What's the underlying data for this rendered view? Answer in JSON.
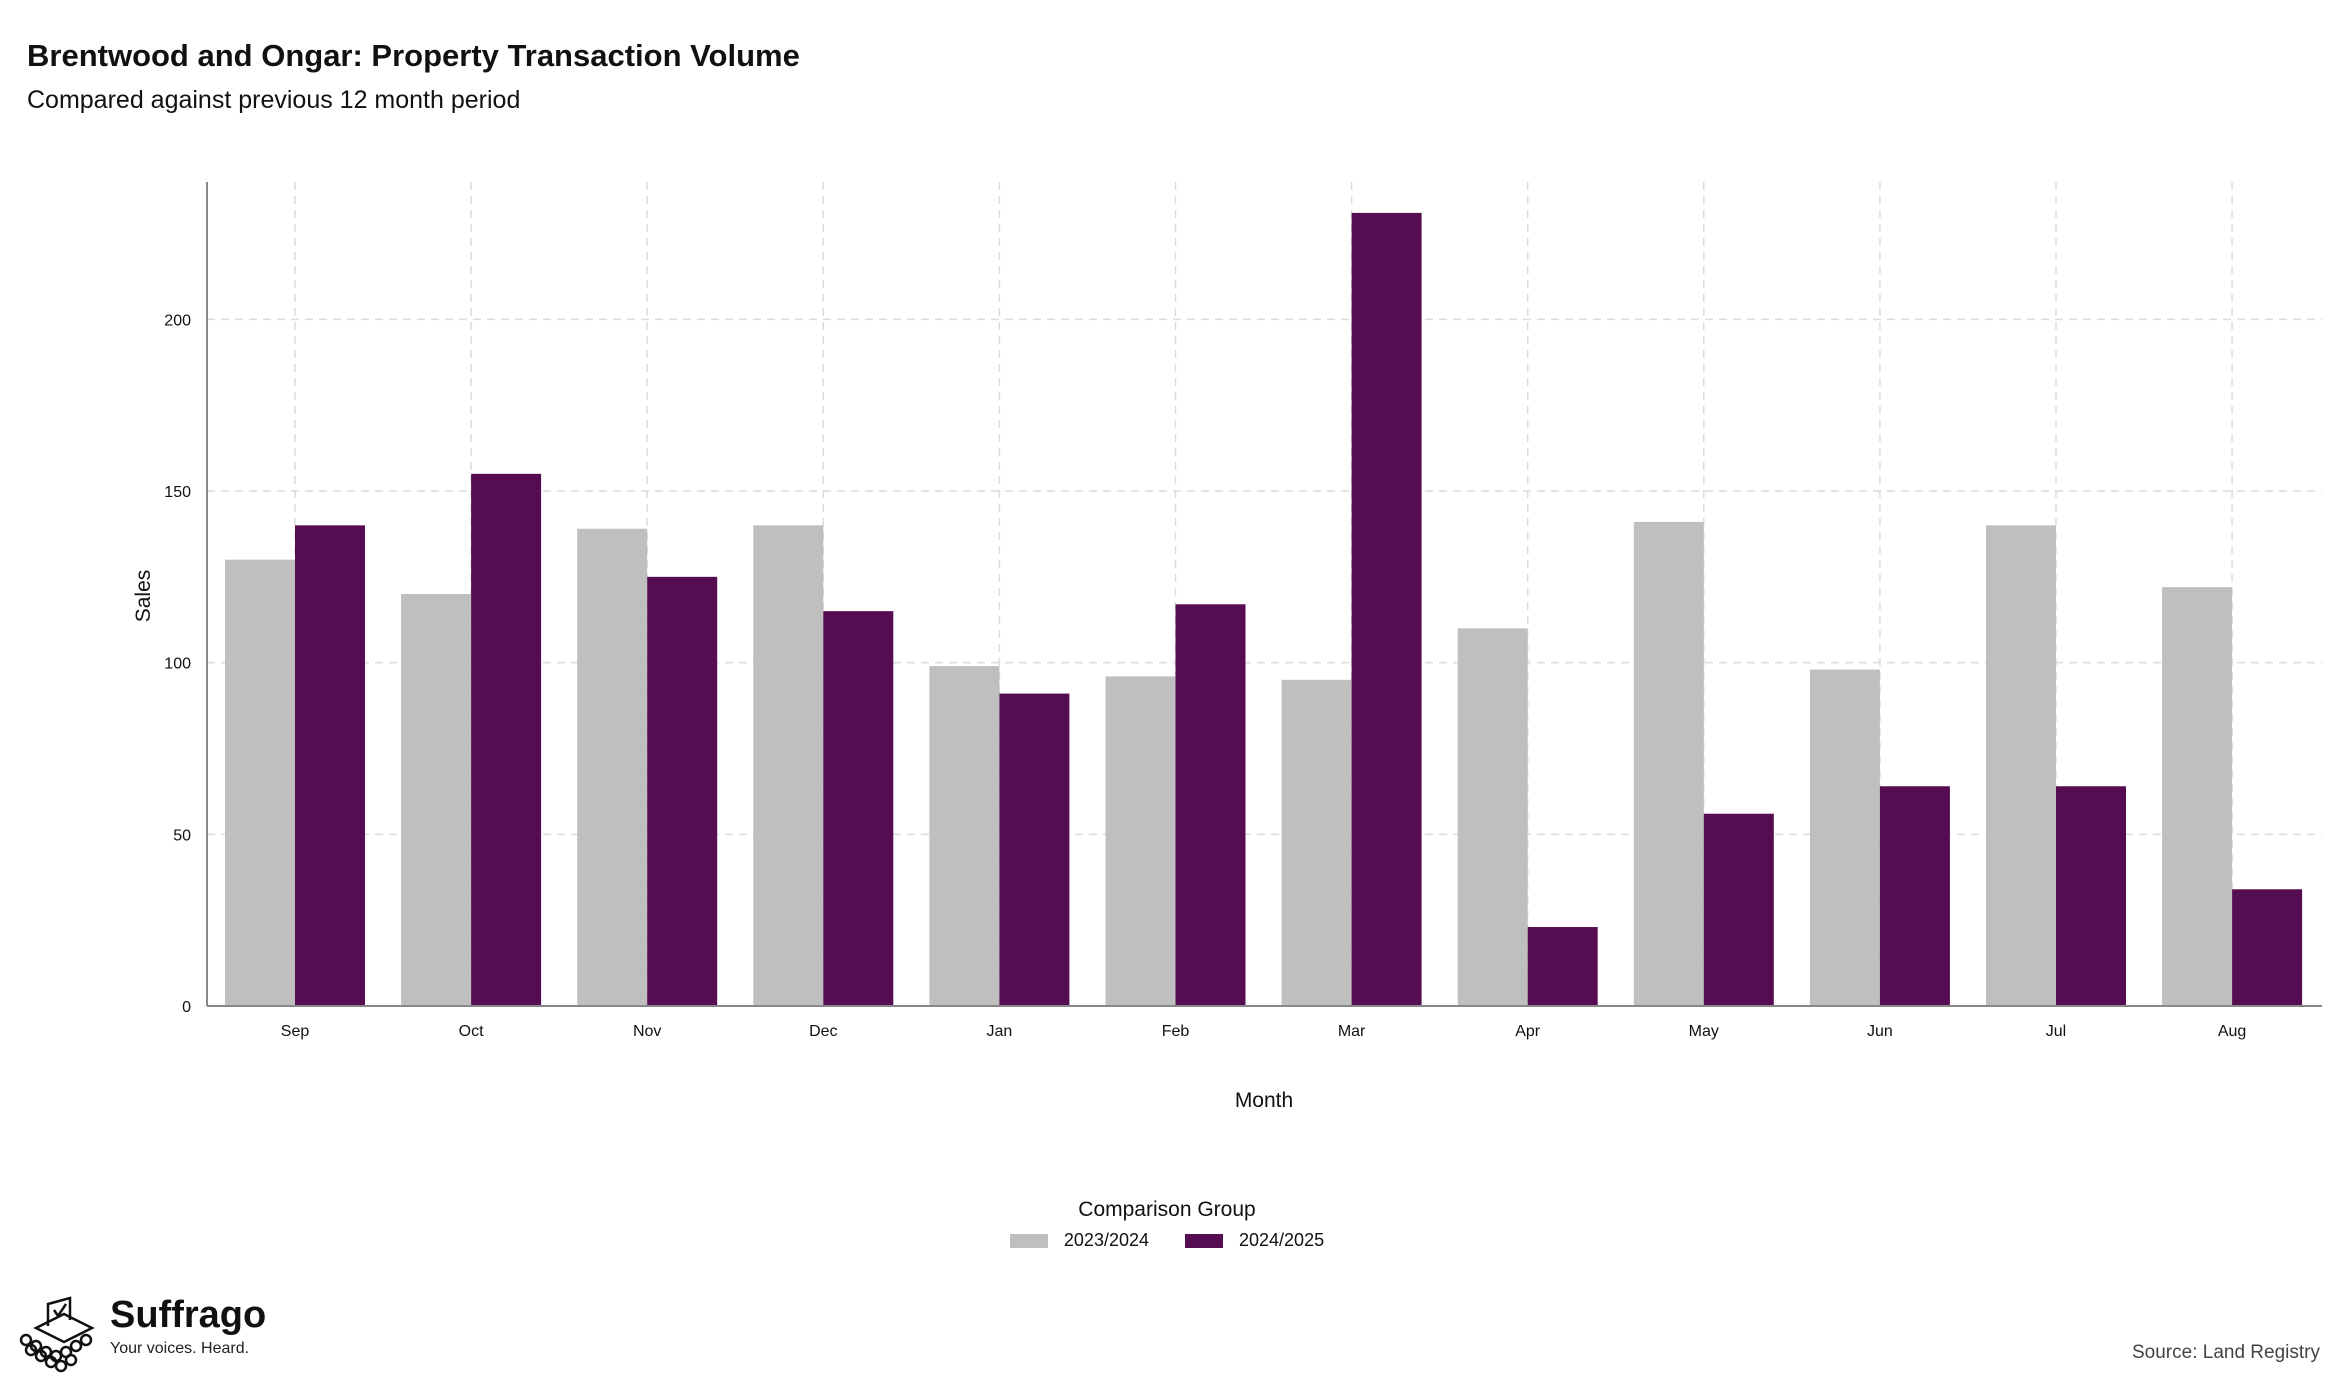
{
  "title": "Brentwood and Ongar: Property Transaction Volume",
  "subtitle": "Compared against previous 12 month period",
  "source": "Source: Land Registry",
  "brand": {
    "name": "Suffrago",
    "tagline": "Your voices. Heard."
  },
  "legend": {
    "title": "Comparison Group",
    "items": [
      {
        "label": "2023/2024",
        "color": "#bfbfbf"
      },
      {
        "label": "2024/2025",
        "color": "#560c51"
      }
    ]
  },
  "chart_data": {
    "type": "bar",
    "title": "Brentwood and Ongar: Property Transaction Volume",
    "subtitle": "Compared against previous 12 month period",
    "xlabel": "Month",
    "ylabel": "Sales",
    "categories": [
      "Sep",
      "Oct",
      "Nov",
      "Dec",
      "Jan",
      "Feb",
      "Mar",
      "Apr",
      "May",
      "Jun",
      "Jul",
      "Aug"
    ],
    "series": [
      {
        "name": "2023/2024",
        "color": "#bfbfbf",
        "values": [
          130,
          120,
          139,
          140,
          99,
          96,
          95,
          110,
          141,
          98,
          140,
          122
        ]
      },
      {
        "name": "2024/2025",
        "color": "#560c51",
        "values": [
          140,
          155,
          125,
          115,
          91,
          117,
          231,
          23,
          56,
          64,
          64,
          34
        ]
      }
    ],
    "yticks": [
      0,
      50,
      100,
      150,
      200
    ],
    "ylim": [
      0,
      240
    ],
    "grid": true,
    "legend_position": "bottom"
  }
}
